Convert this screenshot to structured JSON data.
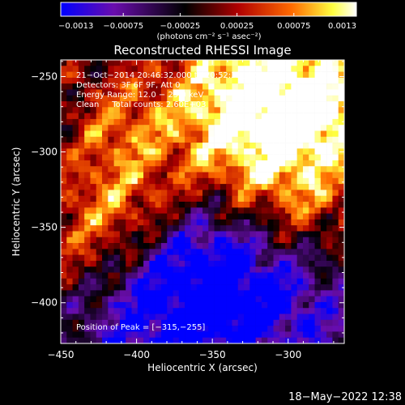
{
  "chart_data": {
    "type": "heatmap",
    "title": "Reconstructed RHESSI Image",
    "xlabel": "Heliocentric X (arcsec)",
    "ylabel": "Heliocentric Y (arcsec)",
    "xlim": [
      -450,
      -263
    ],
    "ylim": [
      -427,
      -239
    ],
    "xticks": [
      -450,
      -400,
      -350,
      -300
    ],
    "xtick_labels": [
      "−450",
      "−400",
      "−350",
      "−300"
    ],
    "yticks": [
      -250,
      -300,
      -350,
      -400
    ],
    "ytick_labels": [
      "−250",
      "−300",
      "−350",
      "−400"
    ],
    "colorbar": {
      "min": -0.0013,
      "max": 0.0013,
      "ticks": [
        -0.0013,
        -0.00075,
        -0.00025,
        0.00025,
        0.00075,
        0.0013
      ],
      "tick_labels": [
        "−0.0013",
        "−0.00075",
        "−0.00025",
        "0.00025",
        "0.00075",
        "0.0013"
      ],
      "unit_label": "(photons cm⁻² s⁻¹ asec⁻²)",
      "colors": [
        "#0000ff",
        "#6a0dad",
        "#000000",
        "#b00000",
        "#ff6a00",
        "#ffff40",
        "#ffffff"
      ]
    },
    "peak": {
      "x": -315,
      "y": -255
    },
    "annotations": [
      "21−Oct−2014 20:46:32.000 to 20:52:32.000",
      "Detectors: 3F 6F 9F, Att 0",
      "Energy Range: 12.0 − 25.0 keV",
      "Clean     Total counts: 2.60E+03",
      "Position of Peak = [−315,−255]"
    ]
  },
  "footer": {
    "timestamp": "18−May−2022 12:38"
  }
}
